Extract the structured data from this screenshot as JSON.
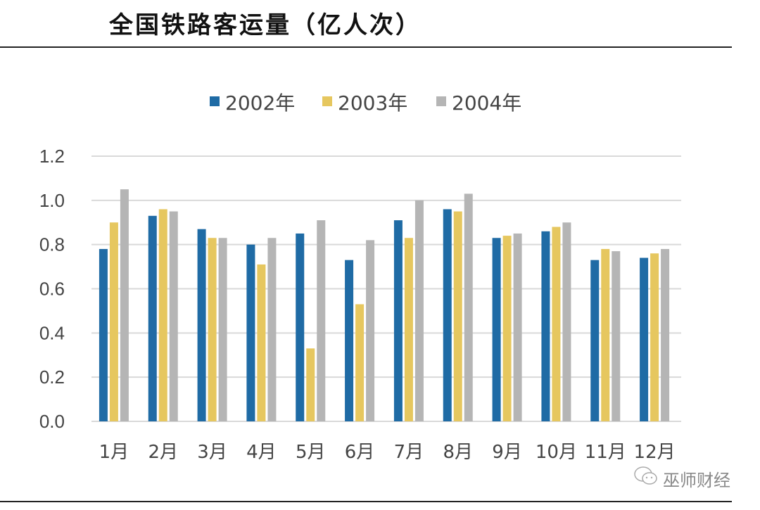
{
  "title": "全国铁路客运量（亿人次）",
  "watermark": "巫师财经",
  "chart_data": {
    "type": "bar",
    "title": "全国铁路客运量（亿人次）",
    "categories": [
      "1月",
      "2月",
      "3月",
      "4月",
      "5月",
      "6月",
      "7月",
      "8月",
      "9月",
      "10月",
      "11月",
      "12月"
    ],
    "series": [
      {
        "name": "2002年",
        "color": "#1f6ba5",
        "values": [
          0.78,
          0.93,
          0.87,
          0.8,
          0.85,
          0.73,
          0.91,
          0.96,
          0.83,
          0.86,
          0.73,
          0.74
        ]
      },
      {
        "name": "2003年",
        "color": "#e6c75f",
        "values": [
          0.9,
          0.96,
          0.83,
          0.71,
          0.33,
          0.53,
          0.83,
          0.95,
          0.84,
          0.88,
          0.78,
          0.76
        ]
      },
      {
        "name": "2004年",
        "color": "#b5b5b5",
        "values": [
          1.05,
          0.95,
          0.83,
          0.83,
          0.91,
          0.82,
          1.0,
          1.03,
          0.85,
          0.9,
          0.77,
          0.78
        ]
      }
    ],
    "ylim": [
      0,
      1.2
    ],
    "yticks": [
      "0.0",
      "0.2",
      "0.4",
      "0.6",
      "0.8",
      "1.0",
      "1.2"
    ],
    "grid": true,
    "legend": "top"
  }
}
